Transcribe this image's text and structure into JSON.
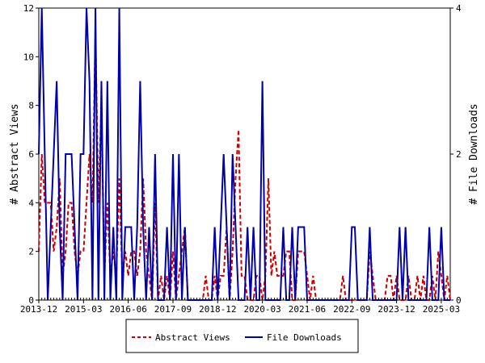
{
  "colors": {
    "abstract_views": "#cc0000",
    "file_downloads": "#0000aa"
  },
  "chart_data": {
    "type": "line",
    "x_tick_labels": [
      "2013-12",
      "2015-03",
      "2016-06",
      "2017-09",
      "2018-12",
      "2020-03",
      "2021-06",
      "2022-09",
      "2023-12",
      "2025-03"
    ],
    "xlim": [
      "2013-12",
      "2025-06"
    ],
    "ylabel_left": "# Abstract Views",
    "ylabel_right": "# File Downloads",
    "ylim_left": [
      0,
      12
    ],
    "ylim_right": [
      0,
      4
    ],
    "yticks_left": [
      "0",
      "2",
      "4",
      "6",
      "8",
      "10",
      "12"
    ],
    "yticks_right": [
      "0",
      "2",
      "4"
    ],
    "legend_position": "bottom-center",
    "series": [
      {
        "name": "Abstract Views",
        "axis": "left",
        "style": "dashed",
        "points": [
          [
            "2013-12",
            2
          ],
          [
            "2014-01",
            6
          ],
          [
            "2014-02",
            4
          ],
          [
            "2014-03",
            4
          ],
          [
            "2014-04",
            4
          ],
          [
            "2014-05",
            2
          ],
          [
            "2014-06",
            3
          ],
          [
            "2014-07",
            5
          ],
          [
            "2014-08",
            1
          ],
          [
            "2014-09",
            2
          ],
          [
            "2014-10",
            4
          ],
          [
            "2014-11",
            4
          ],
          [
            "2014-12",
            2
          ],
          [
            "2015-01",
            1
          ],
          [
            "2015-02",
            2
          ],
          [
            "2015-03",
            2
          ],
          [
            "2015-04",
            4
          ],
          [
            "2015-05",
            6
          ],
          [
            "2015-06",
            4
          ],
          [
            "2015-07",
            11
          ],
          [
            "2015-08",
            4
          ],
          [
            "2015-09",
            8
          ],
          [
            "2015-10",
            1
          ],
          [
            "2015-11",
            4
          ],
          [
            "2015-12",
            1
          ],
          [
            "2016-01",
            2
          ],
          [
            "2016-02",
            1
          ],
          [
            "2016-03",
            5
          ],
          [
            "2016-04",
            1
          ],
          [
            "2016-05",
            2
          ],
          [
            "2016-06",
            1
          ],
          [
            "2016-07",
            2
          ],
          [
            "2016-08",
            2
          ],
          [
            "2016-09",
            1
          ],
          [
            "2016-10",
            2
          ],
          [
            "2016-11",
            5
          ],
          [
            "2016-12",
            2
          ],
          [
            "2017-01",
            1
          ],
          [
            "2017-02",
            0
          ],
          [
            "2017-03",
            4
          ],
          [
            "2017-04",
            0
          ],
          [
            "2017-05",
            1
          ],
          [
            "2017-06",
            0
          ],
          [
            "2017-07",
            1
          ],
          [
            "2017-08",
            0
          ],
          [
            "2017-09",
            2
          ],
          [
            "2017-10",
            0
          ],
          [
            "2017-11",
            1
          ],
          [
            "2017-12",
            2
          ],
          [
            "2018-01",
            3
          ],
          [
            "2018-02",
            0
          ],
          [
            "2018-03",
            0
          ],
          [
            "2018-04",
            0
          ],
          [
            "2018-05",
            0
          ],
          [
            "2018-06",
            0
          ],
          [
            "2018-07",
            0
          ],
          [
            "2018-08",
            1
          ],
          [
            "2018-09",
            0
          ],
          [
            "2018-10",
            0
          ],
          [
            "2018-11",
            1
          ],
          [
            "2018-12",
            0
          ],
          [
            "2019-01",
            1
          ],
          [
            "2019-02",
            1
          ],
          [
            "2019-03",
            3
          ],
          [
            "2019-04",
            0
          ],
          [
            "2019-05",
            2
          ],
          [
            "2019-06",
            5
          ],
          [
            "2019-07",
            7
          ],
          [
            "2019-08",
            1
          ],
          [
            "2019-09",
            1
          ],
          [
            "2019-10",
            0
          ],
          [
            "2019-11",
            0
          ],
          [
            "2019-12",
            0
          ],
          [
            "2020-01",
            1
          ],
          [
            "2020-02",
            1
          ],
          [
            "2020-03",
            0
          ],
          [
            "2020-04",
            1
          ],
          [
            "2020-05",
            5
          ],
          [
            "2020-06",
            1
          ],
          [
            "2020-07",
            2
          ],
          [
            "2020-08",
            1
          ],
          [
            "2020-09",
            1
          ],
          [
            "2020-10",
            1
          ],
          [
            "2020-11",
            2
          ],
          [
            "2020-12",
            2
          ],
          [
            "2021-01",
            0
          ],
          [
            "2021-02",
            0
          ],
          [
            "2021-03",
            2
          ],
          [
            "2021-04",
            2
          ],
          [
            "2021-05",
            2
          ],
          [
            "2021-06",
            1
          ],
          [
            "2021-07",
            0
          ],
          [
            "2021-08",
            1
          ],
          [
            "2021-09",
            0
          ],
          [
            "2021-10",
            0
          ],
          [
            "2021-11",
            0
          ],
          [
            "2021-12",
            0
          ],
          [
            "2022-01",
            0
          ],
          [
            "2022-02",
            0
          ],
          [
            "2022-03",
            0
          ],
          [
            "2022-04",
            0
          ],
          [
            "2022-05",
            0
          ],
          [
            "2022-06",
            1
          ],
          [
            "2022-07",
            0
          ],
          [
            "2022-08",
            0
          ],
          [
            "2022-09",
            0
          ],
          [
            "2022-10",
            0
          ],
          [
            "2022-11",
            0
          ],
          [
            "2022-12",
            0
          ],
          [
            "2023-01",
            0
          ],
          [
            "2023-02",
            0
          ],
          [
            "2023-03",
            2
          ],
          [
            "2023-04",
            1
          ],
          [
            "2023-05",
            0
          ],
          [
            "2023-06",
            0
          ],
          [
            "2023-07",
            0
          ],
          [
            "2023-08",
            0
          ],
          [
            "2023-09",
            1
          ],
          [
            "2023-10",
            1
          ],
          [
            "2023-11",
            0
          ],
          [
            "2023-12",
            1
          ],
          [
            "2024-01",
            0
          ],
          [
            "2024-02",
            0
          ],
          [
            "2024-03",
            0
          ],
          [
            "2024-04",
            1
          ],
          [
            "2024-05",
            0
          ],
          [
            "2024-06",
            0
          ],
          [
            "2024-07",
            1
          ],
          [
            "2024-08",
            0
          ],
          [
            "2024-09",
            1
          ],
          [
            "2024-10",
            0
          ],
          [
            "2024-11",
            0
          ],
          [
            "2024-12",
            1
          ],
          [
            "2025-01",
            0
          ],
          [
            "2025-02",
            2
          ],
          [
            "2025-03",
            1
          ],
          [
            "2025-04",
            0
          ],
          [
            "2025-05",
            1
          ],
          [
            "2025-06",
            0
          ]
        ]
      },
      {
        "name": "File Downloads",
        "axis": "right",
        "style": "solid",
        "points": [
          [
            "2013-12",
            2
          ],
          [
            "2014-01",
            4
          ],
          [
            "2014-02",
            2
          ],
          [
            "2014-03",
            0
          ],
          [
            "2014-04",
            1
          ],
          [
            "2014-05",
            2
          ],
          [
            "2014-06",
            3
          ],
          [
            "2014-07",
            1
          ],
          [
            "2014-08",
            0
          ],
          [
            "2014-09",
            2
          ],
          [
            "2014-10",
            2
          ],
          [
            "2014-11",
            2
          ],
          [
            "2014-12",
            1
          ],
          [
            "2015-01",
            0
          ],
          [
            "2015-02",
            2
          ],
          [
            "2015-03",
            2
          ],
          [
            "2015-04",
            4
          ],
          [
            "2015-05",
            3
          ],
          [
            "2015-06",
            0
          ],
          [
            "2015-07",
            4
          ],
          [
            "2015-08",
            0
          ],
          [
            "2015-09",
            3
          ],
          [
            "2015-10",
            0
          ],
          [
            "2015-11",
            3
          ],
          [
            "2015-12",
            0
          ],
          [
            "2016-01",
            1
          ],
          [
            "2016-02",
            0
          ],
          [
            "2016-03",
            4
          ],
          [
            "2016-04",
            0
          ],
          [
            "2016-05",
            1
          ],
          [
            "2016-06",
            1
          ],
          [
            "2016-07",
            1
          ],
          [
            "2016-08",
            0
          ],
          [
            "2016-09",
            1
          ],
          [
            "2016-10",
            3
          ],
          [
            "2016-11",
            1
          ],
          [
            "2016-12",
            0
          ],
          [
            "2017-01",
            1
          ],
          [
            "2017-02",
            0
          ],
          [
            "2017-03",
            2
          ],
          [
            "2017-04",
            0
          ],
          [
            "2017-05",
            0
          ],
          [
            "2017-06",
            0
          ],
          [
            "2017-07",
            1
          ],
          [
            "2017-08",
            0
          ],
          [
            "2017-09",
            2
          ],
          [
            "2017-10",
            0
          ],
          [
            "2017-11",
            2
          ],
          [
            "2017-12",
            0
          ],
          [
            "2018-01",
            1
          ],
          [
            "2018-02",
            0
          ],
          [
            "2018-03",
            0
          ],
          [
            "2018-04",
            0
          ],
          [
            "2018-05",
            0
          ],
          [
            "2018-06",
            0
          ],
          [
            "2018-07",
            0
          ],
          [
            "2018-08",
            0
          ],
          [
            "2018-09",
            0
          ],
          [
            "2018-10",
            0
          ],
          [
            "2018-11",
            1
          ],
          [
            "2018-12",
            0
          ],
          [
            "2019-01",
            1
          ],
          [
            "2019-02",
            2
          ],
          [
            "2019-03",
            1
          ],
          [
            "2019-04",
            0
          ],
          [
            "2019-05",
            2
          ],
          [
            "2019-06",
            1
          ],
          [
            "2019-07",
            0
          ],
          [
            "2019-08",
            0
          ],
          [
            "2019-09",
            0
          ],
          [
            "2019-10",
            1
          ],
          [
            "2019-11",
            0
          ],
          [
            "2019-12",
            1
          ],
          [
            "2020-01",
            0
          ],
          [
            "2020-02",
            0
          ],
          [
            "2020-03",
            3
          ],
          [
            "2020-04",
            0
          ],
          [
            "2020-05",
            0
          ],
          [
            "2020-06",
            0
          ],
          [
            "2020-07",
            0
          ],
          [
            "2020-08",
            0
          ],
          [
            "2020-09",
            0
          ],
          [
            "2020-10",
            1
          ],
          [
            "2020-11",
            0
          ],
          [
            "2020-12",
            0
          ],
          [
            "2021-01",
            1
          ],
          [
            "2021-02",
            0
          ],
          [
            "2021-03",
            1
          ],
          [
            "2021-04",
            1
          ],
          [
            "2021-05",
            1
          ],
          [
            "2021-06",
            0
          ],
          [
            "2021-07",
            0
          ],
          [
            "2021-08",
            0
          ],
          [
            "2021-09",
            0
          ],
          [
            "2021-10",
            0
          ],
          [
            "2021-11",
            0
          ],
          [
            "2021-12",
            0
          ],
          [
            "2022-01",
            0
          ],
          [
            "2022-02",
            0
          ],
          [
            "2022-03",
            0
          ],
          [
            "2022-04",
            0
          ],
          [
            "2022-05",
            0
          ],
          [
            "2022-06",
            0
          ],
          [
            "2022-07",
            0
          ],
          [
            "2022-08",
            0
          ],
          [
            "2022-09",
            1
          ],
          [
            "2022-10",
            1
          ],
          [
            "2022-11",
            0
          ],
          [
            "2022-12",
            0
          ],
          [
            "2023-01",
            0
          ],
          [
            "2023-02",
            0
          ],
          [
            "2023-03",
            1
          ],
          [
            "2023-04",
            0
          ],
          [
            "2023-05",
            0
          ],
          [
            "2023-06",
            0
          ],
          [
            "2023-07",
            0
          ],
          [
            "2023-08",
            0
          ],
          [
            "2023-09",
            0
          ],
          [
            "2023-10",
            0
          ],
          [
            "2023-11",
            0
          ],
          [
            "2023-12",
            0
          ],
          [
            "2024-01",
            1
          ],
          [
            "2024-02",
            0
          ],
          [
            "2024-03",
            1
          ],
          [
            "2024-04",
            0
          ],
          [
            "2024-05",
            0
          ],
          [
            "2024-06",
            0
          ],
          [
            "2024-07",
            0
          ],
          [
            "2024-08",
            0
          ],
          [
            "2024-09",
            0
          ],
          [
            "2024-10",
            0
          ],
          [
            "2024-11",
            1
          ],
          [
            "2024-12",
            0
          ],
          [
            "2025-01",
            0
          ],
          [
            "2025-02",
            0
          ],
          [
            "2025-03",
            1
          ],
          [
            "2025-04",
            0
          ],
          [
            "2025-05",
            0
          ],
          [
            "2025-06",
            0
          ]
        ]
      }
    ]
  }
}
